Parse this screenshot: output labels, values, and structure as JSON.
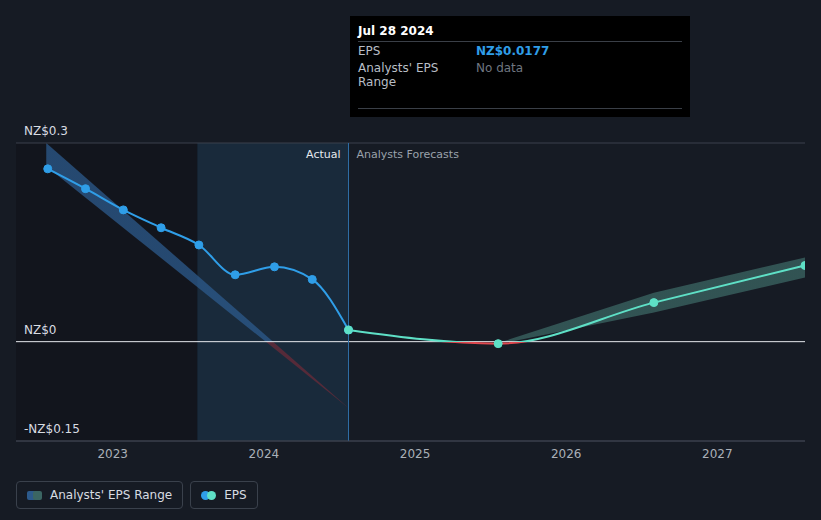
{
  "chart_data": {
    "type": "line",
    "xlim": [
      2022.36,
      2027.58
    ],
    "xticks": [
      2023,
      2024,
      2025,
      2026,
      2027
    ],
    "ylim": [
      -0.15,
      0.3
    ],
    "yticks": [
      {
        "value": 0.3,
        "label": "NZ$0.3"
      },
      {
        "value": 0,
        "label": "NZ$0"
      },
      {
        "value": -0.15,
        "label": "-NZ$0.15"
      }
    ],
    "grid": true,
    "legend": "bottom left",
    "now": 2024.56,
    "highlight": [
      2023.56,
      2024.56
    ],
    "annotations": {
      "actual": "Actual",
      "forecast": "Analysts Forecasts"
    },
    "tooltip": {
      "date": "Jul 28 2024",
      "rows": [
        {
          "label": "EPS",
          "value": "NZ$0.0177"
        },
        {
          "label": "Analysts' EPS Range",
          "value": "No data"
        }
      ]
    },
    "series": [
      {
        "name": "Analysts' EPS Range",
        "type": "range",
        "color": "#2c5a8c",
        "x": [
          2022.56,
          2024.56
        ],
        "low": [
          0.265,
          -0.1
        ],
        "high": [
          0.3,
          -0.1
        ]
      },
      {
        "name": "Analysts' EPS Range",
        "type": "range",
        "color": "#3b6663",
        "x": [
          2025.55,
          2026.58,
          2027.58
        ],
        "low": [
          -0.004,
          0.044,
          0.097
        ],
        "high": [
          -0.002,
          0.074,
          0.127
        ]
      },
      {
        "name": "EPS",
        "type": "line",
        "color": "#2f9ee8",
        "x": [
          2022.57,
          2022.82,
          2023.07,
          2023.32,
          2023.57,
          2023.81,
          2024.07,
          2024.32,
          2024.56
        ],
        "values": [
          0.261,
          0.231,
          0.199,
          0.172,
          0.146,
          0.101,
          0.113,
          0.094,
          0.0177
        ]
      },
      {
        "name": "EPS",
        "type": "line",
        "color": "#5ee0c6",
        "x": [
          2024.56,
          2025.55,
          2026.58,
          2027.58
        ],
        "values": [
          0.0177,
          -0.003,
          0.059,
          0.115
        ]
      }
    ]
  }
}
